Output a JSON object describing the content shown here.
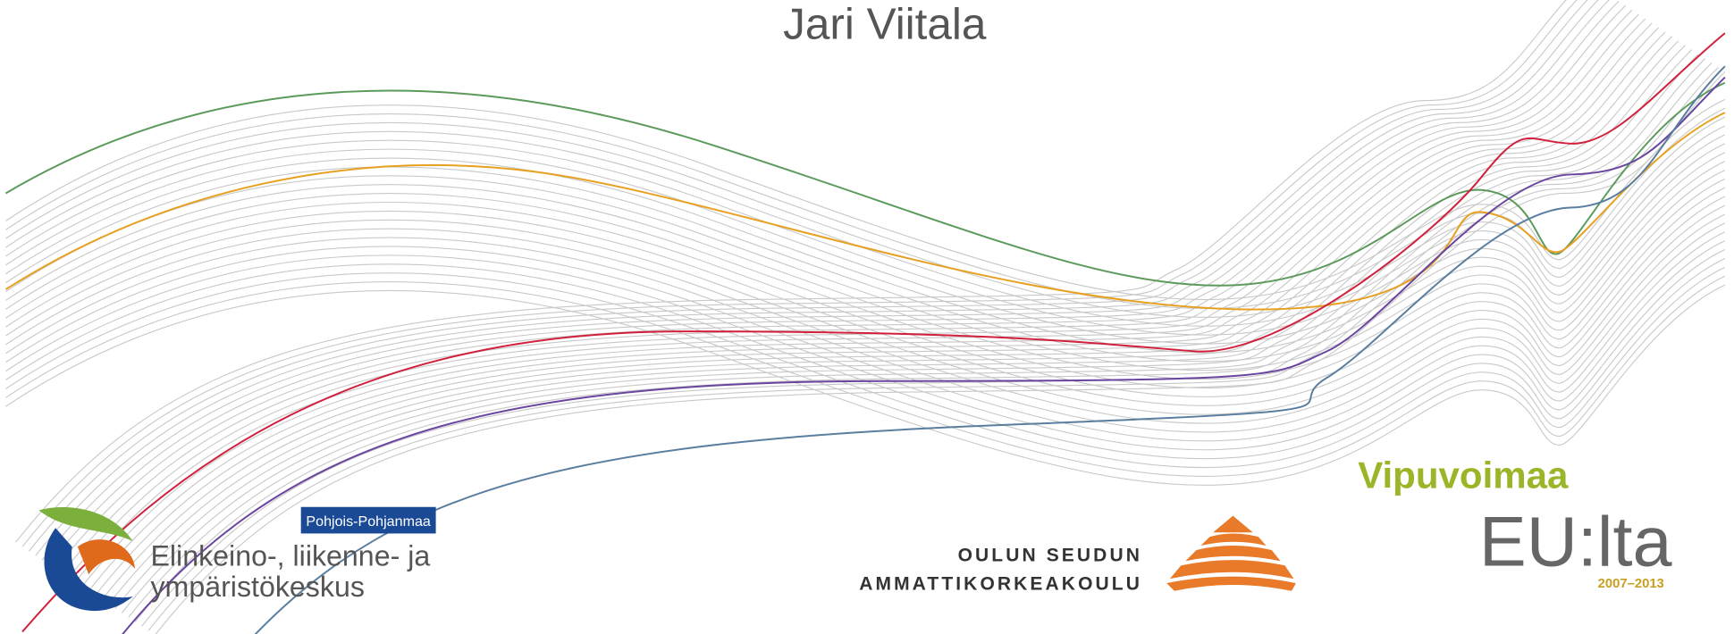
{
  "title": "Jari Viitala",
  "logos": {
    "ely": {
      "region": "Pohjois-Pohjanmaa",
      "line1": "Elinkeino-, liikenne- ja",
      "line2": "ympäristökeskus"
    },
    "oamk": {
      "line1": "OULUN SEUDUN",
      "line2": "AMMATTIKORKEAKOULU"
    },
    "eu": {
      "line1": "Vipuvoimaa",
      "line2": "EU:lta",
      "years": "2007–2013"
    }
  }
}
